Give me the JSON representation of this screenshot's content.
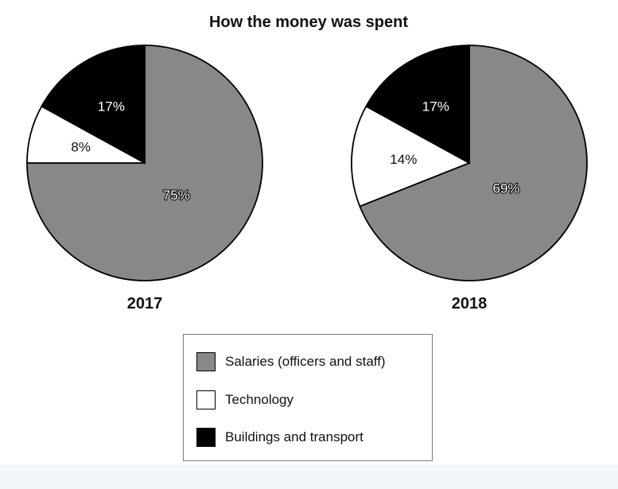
{
  "chart_data": {
    "type": "pie",
    "title": "How the money was spent",
    "categories": [
      "Salaries (officers and staff)",
      "Technology",
      "Buildings and transport"
    ],
    "colors": {
      "Salaries (officers and staff)": "#888888",
      "Technology": "#ffffff",
      "Buildings and transport": "#000000"
    },
    "pies": [
      {
        "label": "2017",
        "slices": [
          {
            "category": "Salaries (officers and staff)",
            "value": 75,
            "label": "75%"
          },
          {
            "category": "Technology",
            "value": 8,
            "label": "8%"
          },
          {
            "category": "Buildings and transport",
            "value": 17,
            "label": "17%"
          }
        ]
      },
      {
        "label": "2018",
        "slices": [
          {
            "category": "Salaries (officers and staff)",
            "value": 69,
            "label": "69%"
          },
          {
            "category": "Technology",
            "value": 14,
            "label": "14%"
          },
          {
            "category": "Buildings and transport",
            "value": 17,
            "label": "17%"
          }
        ]
      }
    ],
    "legend": {
      "position": "bottom-center",
      "items": [
        {
          "label": "Salaries (officers and staff)",
          "color": "#888888"
        },
        {
          "label": "Technology",
          "color": "#ffffff"
        },
        {
          "label": "Buildings and transport",
          "color": "#000000"
        }
      ]
    }
  }
}
